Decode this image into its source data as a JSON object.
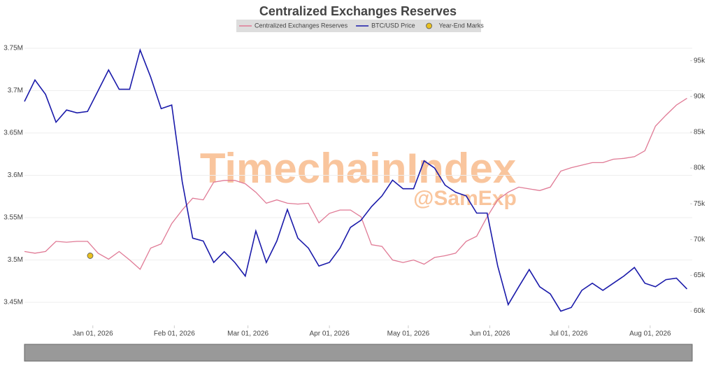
{
  "chart_data": {
    "type": "line",
    "title": "Centralized Exchanges Reserves",
    "watermark": [
      "TimechainIndex",
      "@SamExp"
    ],
    "x": [
      "2025-12-06",
      "2025-12-10",
      "2025-12-14",
      "2025-12-18",
      "2025-12-22",
      "2025-12-26",
      "2025-12-30",
      "2026-01-03",
      "2026-01-07",
      "2026-01-11",
      "2026-01-15",
      "2026-01-19",
      "2026-01-23",
      "2026-01-27",
      "2026-01-31",
      "2026-02-04",
      "2026-02-08",
      "2026-02-12",
      "2026-02-16",
      "2026-02-20",
      "2026-02-24",
      "2026-02-28",
      "2026-03-04",
      "2026-03-08",
      "2026-03-12",
      "2026-03-16",
      "2026-03-20",
      "2026-03-24",
      "2026-03-28",
      "2026-04-01",
      "2026-04-05",
      "2026-04-09",
      "2026-04-13",
      "2026-04-17",
      "2026-04-21",
      "2026-04-25",
      "2026-04-29",
      "2026-05-03",
      "2026-05-07",
      "2026-05-11",
      "2026-05-15",
      "2026-05-19",
      "2026-05-23",
      "2026-05-27",
      "2026-05-31",
      "2026-06-04",
      "2026-06-08",
      "2026-06-12",
      "2026-06-16",
      "2026-06-20",
      "2026-06-24",
      "2026-06-28",
      "2026-07-02",
      "2026-07-06",
      "2026-07-10",
      "2026-07-14",
      "2026-07-18",
      "2026-07-22",
      "2026-07-26",
      "2026-07-30",
      "2026-08-03",
      "2026-08-07",
      "2026-08-11",
      "2026-08-15"
    ],
    "series": [
      {
        "name": "Centralized Exchanges Reserves",
        "color": "#e07a95",
        "axis": "y",
        "values": [
          3510000,
          3508000,
          3510000,
          3522000,
          3521000,
          3522000,
          3522000,
          3508000,
          3501000,
          3510000,
          3500000,
          3489000,
          3514000,
          3519000,
          3543000,
          3559000,
          3573000,
          3571000,
          3592000,
          3594000,
          3594000,
          3590000,
          3580000,
          3567000,
          3571000,
          3567000,
          3566000,
          3567000,
          3544000,
          3555000,
          3559000,
          3559000,
          3551000,
          3518000,
          3516000,
          3500000,
          3497000,
          3500000,
          3495000,
          3503000,
          3505000,
          3508000,
          3522000,
          3528000,
          3551000,
          3571000,
          3580000,
          3586000,
          3584000,
          3582000,
          3586000,
          3605000,
          3609000,
          3612000,
          3615000,
          3615000,
          3619000,
          3620000,
          3622000,
          3629000,
          3658000,
          3671000,
          3683000,
          3691000
        ]
      },
      {
        "name": "BTC/USD Price",
        "color": "#1a1aaa",
        "axis": "y2",
        "values": [
          89300,
          92300,
          90300,
          86400,
          88100,
          87700,
          87900,
          90800,
          93700,
          91000,
          91000,
          96500,
          92700,
          88300,
          88800,
          78100,
          70200,
          69800,
          66800,
          68300,
          66800,
          64900,
          71200,
          66800,
          69800,
          74200,
          70200,
          68800,
          66300,
          66800,
          68800,
          71700,
          72700,
          74600,
          76100,
          78300,
          77100,
          77100,
          81000,
          80000,
          77600,
          76600,
          76100,
          73700,
          73700,
          66300,
          60900,
          63400,
          65800,
          63400,
          62400,
          60000,
          60500,
          62900,
          63900,
          62900,
          63900,
          64900,
          66100,
          63900,
          63400,
          64400,
          64600,
          63100
        ]
      },
      {
        "name": "Year-End Marks",
        "color": "#e8c020",
        "type": "scatter",
        "axis": "y",
        "x": [
          "2025-12-31"
        ],
        "values": [
          3505000
        ]
      }
    ],
    "xlim": [
      "2025-12-06",
      "2026-08-17"
    ],
    "xticks": [
      {
        "value": "2026-01-01",
        "label": "Jan 01, 2026"
      },
      {
        "value": "2026-02-01",
        "label": "Feb 01, 2026"
      },
      {
        "value": "2026-03-01",
        "label": "Mar 01, 2026"
      },
      {
        "value": "2026-04-01",
        "label": "Apr 01, 2026"
      },
      {
        "value": "2026-05-01",
        "label": "May 01, 2026"
      },
      {
        "value": "2026-06-01",
        "label": "Jun 01, 2026"
      },
      {
        "value": "2026-07-01",
        "label": "Jul 01, 2026"
      },
      {
        "value": "2026-08-01",
        "label": "Aug 01, 2026"
      }
    ],
    "ylim": [
      3422700,
      3761600
    ],
    "yticks": [
      {
        "value": 3450000,
        "label": "3.45M"
      },
      {
        "value": 3500000,
        "label": "3.5M"
      },
      {
        "value": 3550000,
        "label": "3.55M"
      },
      {
        "value": 3600000,
        "label": "3.6M"
      },
      {
        "value": 3650000,
        "label": "3.65M"
      },
      {
        "value": 3700000,
        "label": "3.7M"
      },
      {
        "value": 3750000,
        "label": "3.75M"
      }
    ],
    "y2lim": [
      58000,
      98100
    ],
    "y2ticks": [
      {
        "value": 60000,
        "label": "60k"
      },
      {
        "value": 65000,
        "label": "65k"
      },
      {
        "value": 70000,
        "label": "70k"
      },
      {
        "value": 75000,
        "label": "75k"
      },
      {
        "value": 80000,
        "label": "80k"
      },
      {
        "value": 85000,
        "label": "85k"
      },
      {
        "value": 90000,
        "label": "90k"
      },
      {
        "value": 95000,
        "label": "95k"
      }
    ],
    "grid": true
  }
}
